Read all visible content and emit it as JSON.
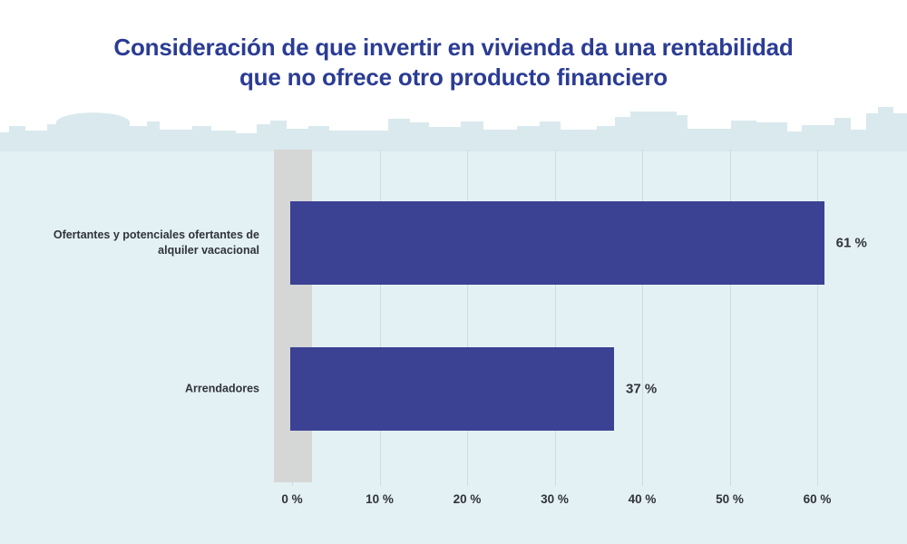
{
  "chart_data": {
    "type": "bar",
    "orientation": "horizontal",
    "title": "Consideración de que invertir en vivienda da una rentabilidad que no ofrece otro producto financiero",
    "categories": [
      "Ofertantes y potenciales ofertantes de alquiler vacacional",
      "Arrendadores"
    ],
    "values": [
      61,
      37
    ],
    "value_labels": [
      "61 %",
      "37 %"
    ],
    "x_tick_values": [
      0,
      10,
      20,
      30,
      40,
      50,
      60
    ],
    "x_tick_labels": [
      "0 %",
      "10 %",
      "20 %",
      "30 %",
      "40 %",
      "50 %",
      "60 %"
    ],
    "xlim": [
      0,
      62
    ],
    "grid": "vertical",
    "legend": "none"
  },
  "colors": {
    "title_text": "#2b3c94",
    "bar_fill": "#3b4294",
    "background_lower": "#e4f1f4",
    "skyline_fill": "#d9e9ee",
    "zero_axis_band": "#d6d6d6",
    "gridline": "#c9dde4",
    "label_text": "#2f3438"
  }
}
